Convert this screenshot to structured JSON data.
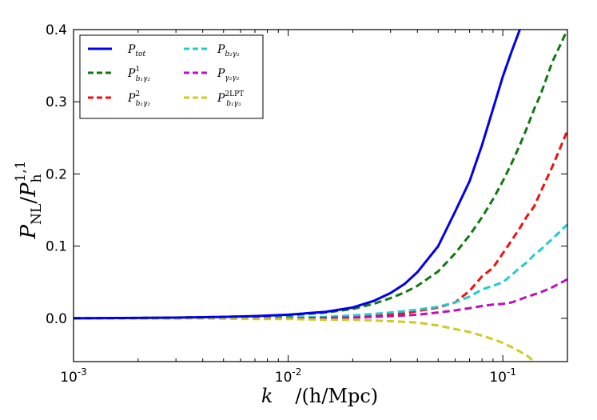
{
  "chart_data": {
    "type": "line",
    "title": "",
    "xlabel": {
      "symbol": "k",
      "unit": "/(h/Mpc)"
    },
    "ylabel": {
      "main": "P",
      "main_sub": "NL",
      "slash": "/",
      "denom": "P",
      "denom_sub": "h",
      "denom_sup": "1,1"
    },
    "xscale": "log",
    "xlim": [
      0.001,
      0.2
    ],
    "ylim": [
      -0.06,
      0.4
    ],
    "x_ticks": [
      {
        "value": 0.001,
        "base": "10",
        "exp": "-3"
      },
      {
        "value": 0.01,
        "base": "10",
        "exp": "-2"
      },
      {
        "value": 0.1,
        "base": "10",
        "exp": "-1"
      }
    ],
    "y_ticks": [
      {
        "value": 0.0,
        "label": "0.0"
      },
      {
        "value": 0.1,
        "label": "0.1"
      },
      {
        "value": 0.2,
        "label": "0.2"
      },
      {
        "value": 0.3,
        "label": "0.3"
      },
      {
        "value": 0.4,
        "label": "0.4"
      }
    ],
    "grid": false,
    "legend_position": "top-left",
    "x": [
      0.001,
      0.002,
      0.003,
      0.005,
      0.007,
      0.01,
      0.015,
      0.02,
      0.025,
      0.03,
      0.035,
      0.04,
      0.05,
      0.06,
      0.07,
      0.08,
      0.09,
      0.1,
      0.11,
      0.12,
      0.13,
      0.14,
      0.15,
      0.17,
      0.2
    ],
    "series": [
      {
        "name": "P_tot",
        "name_main": "P",
        "name_sub": "tot",
        "name_sup": "",
        "color": "#0000ee",
        "dash": "solid",
        "values": [
          0.0,
          0.0005,
          0.001,
          0.002,
          0.003,
          0.005,
          0.009,
          0.015,
          0.024,
          0.035,
          0.048,
          0.064,
          0.1,
          0.148,
          0.19,
          0.24,
          0.29,
          0.335,
          0.37,
          0.4,
          null,
          null,
          null,
          null,
          null
        ]
      },
      {
        "name": "P_b1γ2^1",
        "name_main": "P",
        "name_sub": "b₁γ₂",
        "name_sup": "1",
        "color": "#117711",
        "dash": "dashed",
        "values": [
          0.0,
          0.0005,
          0.001,
          0.002,
          0.003,
          0.004,
          0.008,
          0.013,
          0.02,
          0.028,
          0.036,
          0.045,
          0.065,
          0.09,
          0.115,
          0.14,
          0.165,
          0.19,
          0.215,
          0.24,
          0.265,
          0.29,
          0.31,
          0.355,
          0.4
        ]
      },
      {
        "name": "P_b1γ2^2",
        "name_main": "P",
        "name_sub": "b₁γ₂",
        "name_sup": "2",
        "color": "#ee1111",
        "dash": "dashed",
        "values": [
          0.0,
          0.0,
          0.0,
          0.0,
          0.0002,
          0.0005,
          0.001,
          0.002,
          0.003,
          0.005,
          0.007,
          0.01,
          0.015,
          0.022,
          0.038,
          0.058,
          0.07,
          0.09,
          0.108,
          0.125,
          0.142,
          0.155,
          0.175,
          0.21,
          0.26
        ]
      },
      {
        "name": "P_b2γ2",
        "name_main": "P",
        "name_sub": "b₂γ₂",
        "name_sup": "",
        "color": "#22cccc",
        "dash": "dashed",
        "values": [
          0.0,
          0.0,
          0.0,
          0.0,
          0.0003,
          0.001,
          0.002,
          0.004,
          0.006,
          0.008,
          0.01,
          0.012,
          0.016,
          0.022,
          0.03,
          0.04,
          0.045,
          0.05,
          0.06,
          0.07,
          0.078,
          0.088,
          0.095,
          0.11,
          0.13
        ]
      },
      {
        "name": "P_γ2γ2",
        "name_main": "P",
        "name_sub": "γ₂γ₂",
        "name_sup": "",
        "color": "#bb11bb",
        "dash": "dashed",
        "values": [
          0.0,
          0.0,
          0.0,
          0.0,
          0.0,
          0.0,
          0.0005,
          0.001,
          0.002,
          0.003,
          0.004,
          0.005,
          0.008,
          0.011,
          0.014,
          0.017,
          0.019,
          0.02,
          0.022,
          0.026,
          0.03,
          0.033,
          0.036,
          0.043,
          0.054
        ]
      },
      {
        "name": "P_b1γ3^2LPT",
        "name_main": "P",
        "name_sub": "b₁γ₃",
        "name_sup": "2LPT",
        "color": "#cccc22",
        "dash": "dashed",
        "values": [
          0.0,
          0.0,
          0.0,
          -0.0005,
          -0.001,
          -0.001,
          -0.002,
          -0.002,
          -0.003,
          -0.004,
          -0.005,
          -0.006,
          -0.01,
          -0.015,
          -0.019,
          -0.024,
          -0.029,
          -0.034,
          -0.04,
          -0.046,
          -0.052,
          -0.06,
          null,
          null,
          null
        ]
      }
    ]
  }
}
